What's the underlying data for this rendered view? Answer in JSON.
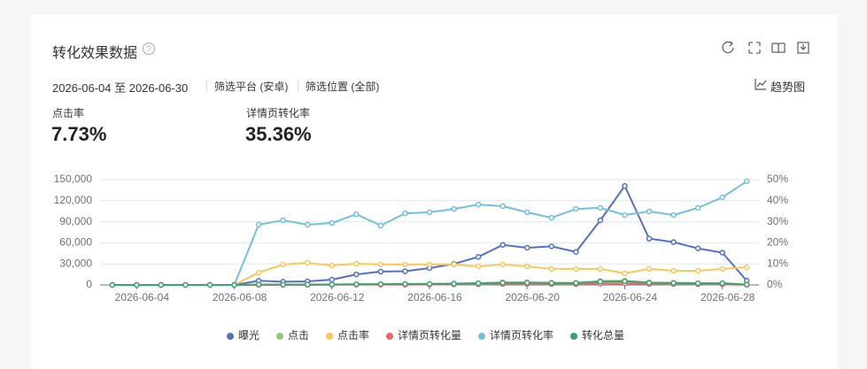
{
  "header": {
    "title": "转化效果数据",
    "date_range": "2026-06-04 至 2026-06-30",
    "filter_platform": "筛选平台 (安卓)",
    "filter_position": "筛选位置 (全部)",
    "view_toggle": "趋势图"
  },
  "metrics": [
    {
      "label": "点击率",
      "value": "7.73%"
    },
    {
      "label": "详情页转化率",
      "value": "35.36%"
    }
  ],
  "chart_data": {
    "type": "line",
    "categories": [
      null,
      "2026-06-04",
      null,
      null,
      null,
      "2026-06-08",
      null,
      null,
      null,
      "2026-06-12",
      null,
      null,
      null,
      "2026-06-16",
      null,
      null,
      null,
      "2026-06-20",
      null,
      null,
      null,
      "2026-06-24",
      null,
      null,
      null,
      "2026-06-28",
      null
    ],
    "ylim": [
      0,
      150000
    ],
    "yticks": [
      0,
      {
        "value": 30000,
        "label": "30,000"
      },
      {
        "value": 60000,
        "label": "60,000"
      },
      {
        "value": 90000,
        "label": "90,000"
      },
      {
        "value": 120000,
        "label": "120,000"
      },
      {
        "value": 150000,
        "label": "150,000"
      }
    ],
    "y2lim": [
      0,
      50
    ],
    "y2ticks": [
      {
        "value": 0,
        "label": "0%"
      },
      {
        "value": 10,
        "label": "10%"
      },
      {
        "value": 20,
        "label": "20%"
      },
      {
        "value": 30,
        "label": "30%"
      },
      {
        "value": 40,
        "label": "40%"
      },
      {
        "value": 50,
        "label": "50%"
      }
    ],
    "grid": true,
    "series": [
      {
        "name": "曝光",
        "color": "#5470c6",
        "values": [
          0,
          0,
          0,
          0,
          0,
          0,
          6000,
          4500,
          5000,
          7500,
          15000,
          19000,
          19500,
          24000,
          30000,
          40000,
          57000,
          53000,
          55000,
          47000,
          92000,
          141000,
          66000,
          61000,
          52000,
          46000,
          6000
        ]
      },
      {
        "name": "点击",
        "color": "#91cc75",
        "values": [
          0,
          0,
          0,
          0,
          0,
          0,
          500,
          500,
          600,
          700,
          1000,
          1200,
          1300,
          1500,
          2000,
          2500,
          3500,
          3500,
          3000,
          3000,
          5500,
          6000,
          3500,
          3000,
          2500,
          2500,
          500
        ]
      },
      {
        "name": "点击率",
        "color": "#fac858",
        "axis": "y2",
        "values": [
          0,
          0,
          0,
          0,
          0,
          0,
          5.9,
          9.7,
          10.5,
          9.2,
          10.1,
          9.7,
          9.7,
          9.7,
          9.7,
          8.8,
          9.7,
          8.8,
          7.6,
          7.6,
          7.6,
          5.5,
          7.6,
          6.7,
          6.7,
          7.6,
          8.4
        ]
      },
      {
        "name": "详情页转化量",
        "color": "#ee6666",
        "values": [
          0,
          0,
          0,
          0,
          0,
          0,
          200,
          200,
          200,
          300,
          400,
          500,
          500,
          600,
          800,
          900,
          1200,
          1300,
          1200,
          1100,
          2000,
          2200,
          1300,
          1200,
          1000,
          1000,
          200
        ]
      },
      {
        "name": "详情页转化率",
        "color": "#73c0de",
        "axis": "y2",
        "values": [
          0,
          0,
          0,
          0,
          0,
          0,
          28.6,
          30.7,
          28.6,
          29.4,
          33.6,
          28.2,
          34.0,
          34.5,
          36.1,
          38.2,
          37.4,
          34.5,
          31.9,
          36.1,
          36.6,
          33.2,
          34.9,
          33.2,
          36.6,
          41.6,
          49.2
        ]
      },
      {
        "name": "转化总量",
        "color": "#3ba272",
        "values": [
          0,
          0,
          0,
          0,
          0,
          0,
          400,
          400,
          500,
          600,
          900,
          1100,
          1200,
          1400,
          1800,
          2300,
          3200,
          3300,
          2800,
          2700,
          4800,
          5200,
          3200,
          2800,
          2300,
          2300,
          400
        ]
      }
    ]
  }
}
